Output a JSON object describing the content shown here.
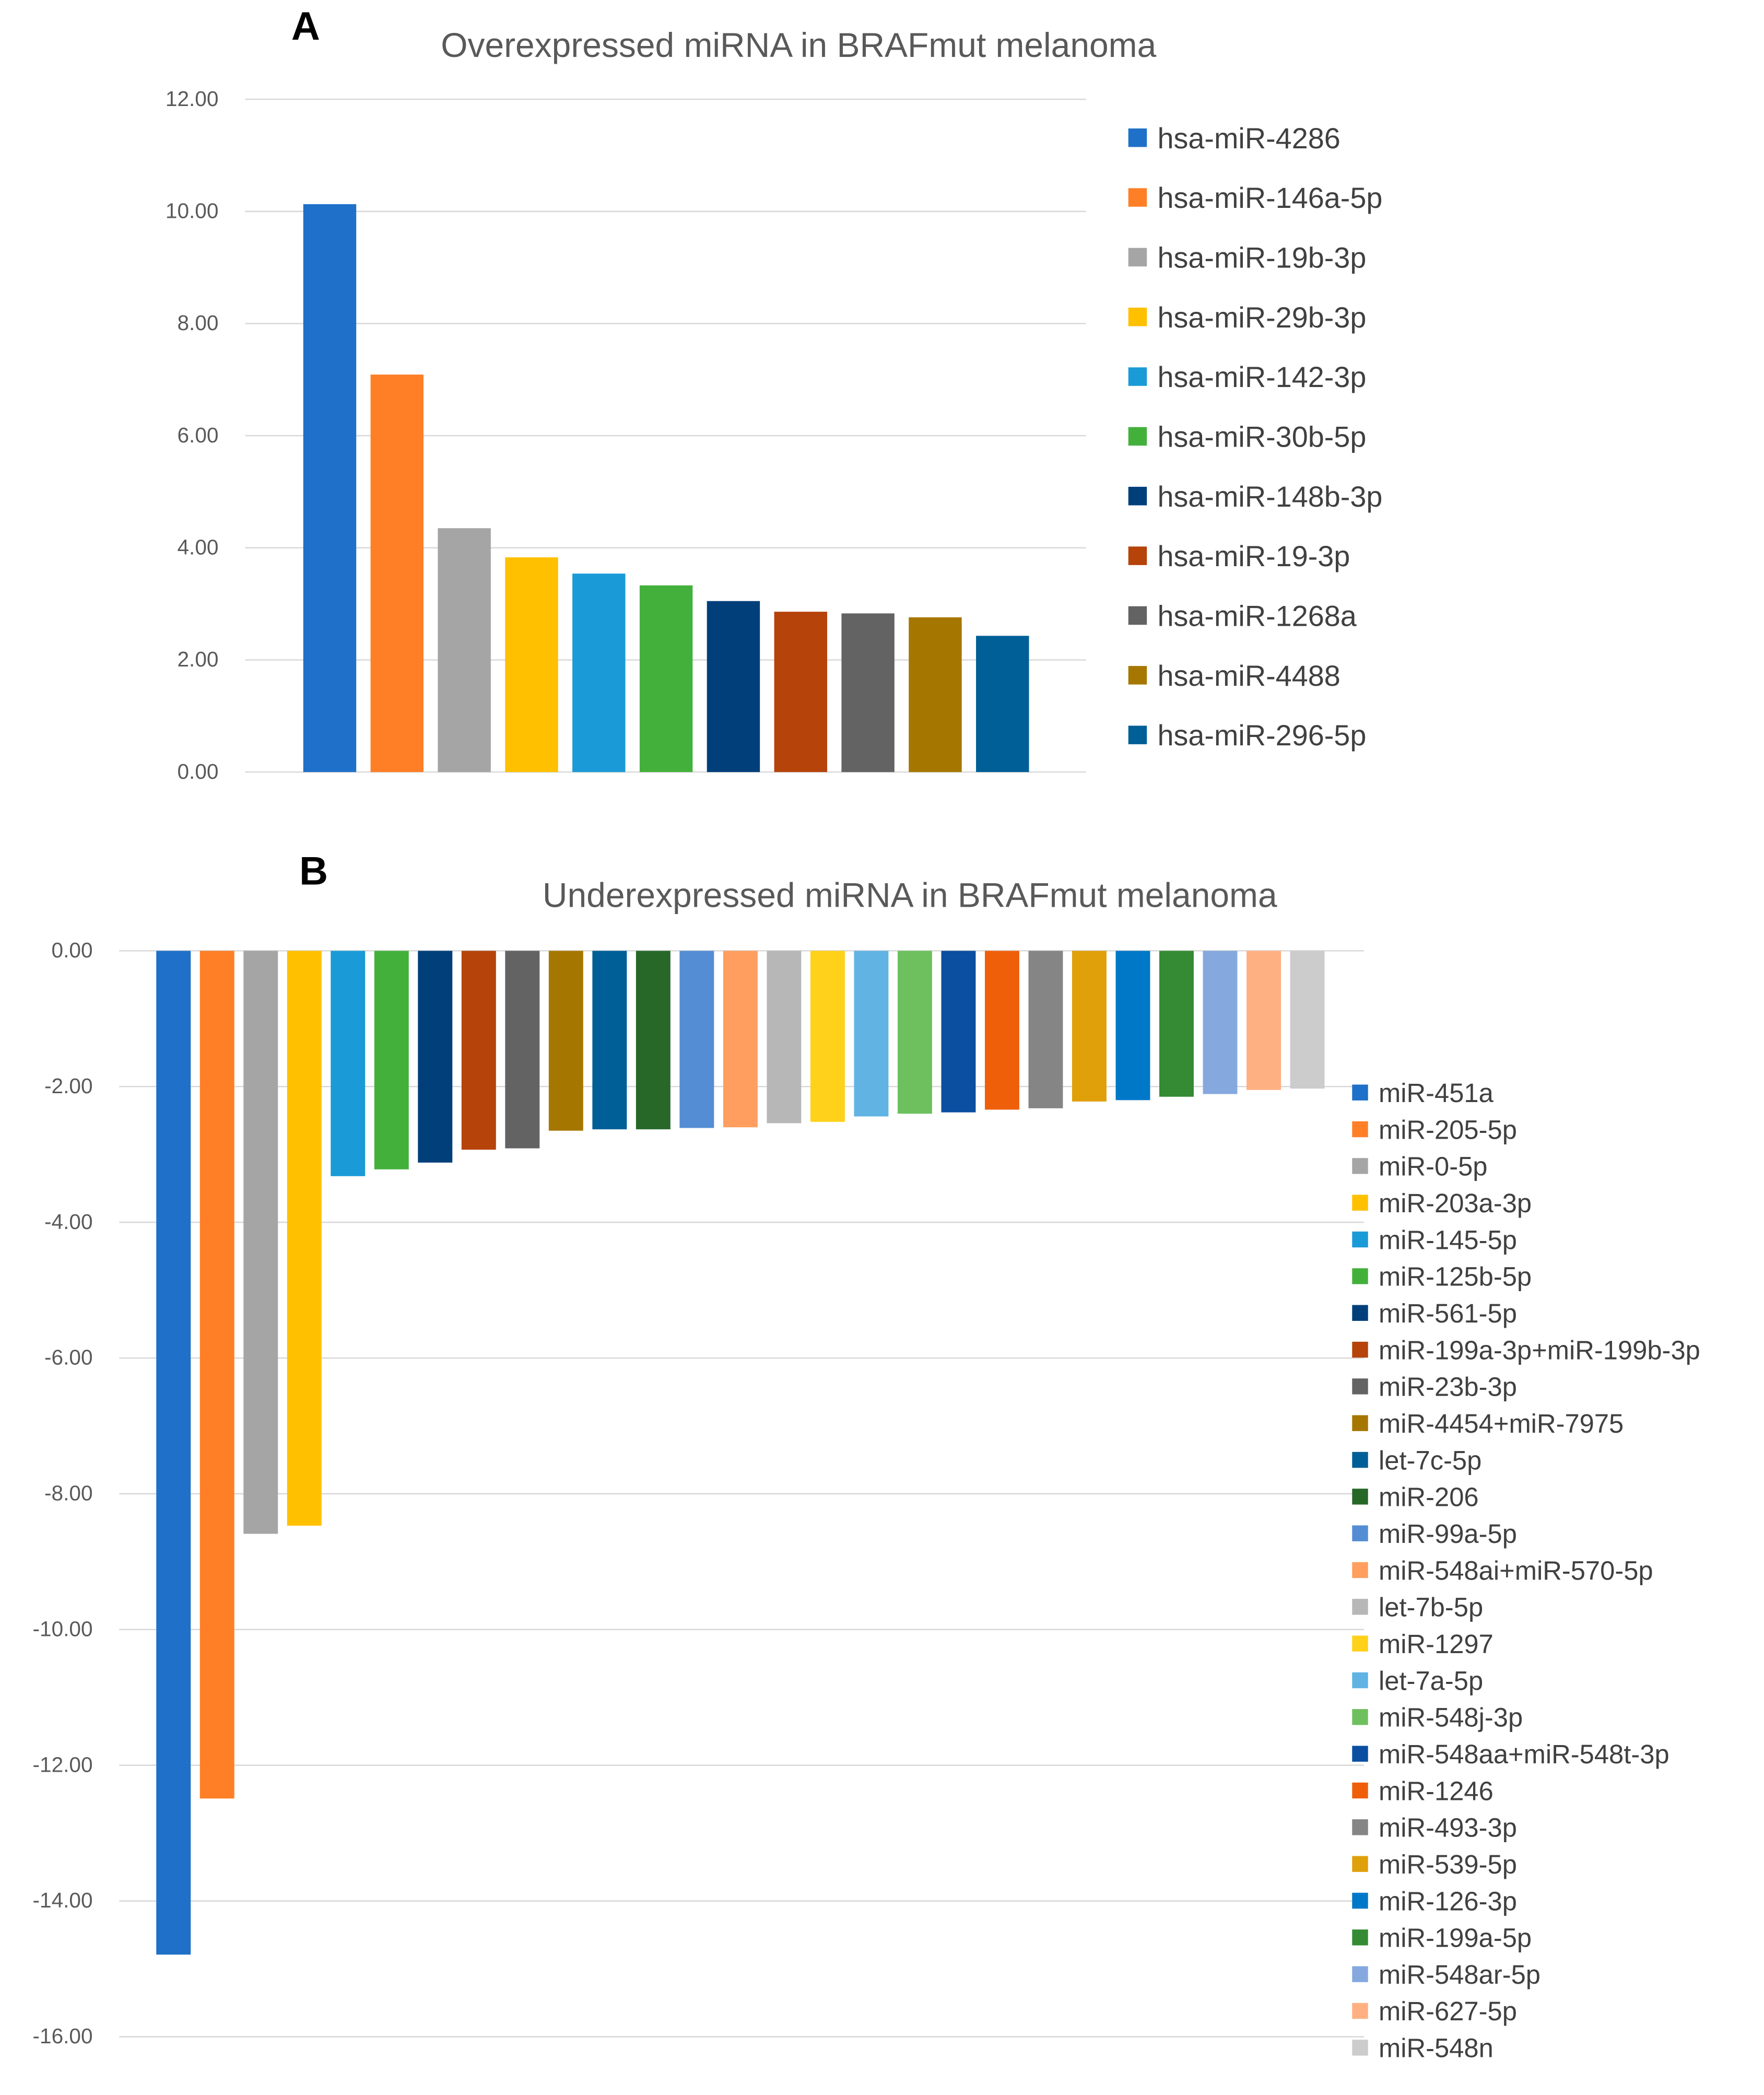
{
  "chart_data": [
    {
      "type": "bar",
      "panel_label": "A",
      "title": "Overexpressed miRNA in BRAFmut melanoma",
      "xlabel": "",
      "ylabel": "",
      "ylim": [
        0,
        12
      ],
      "yticks": [
        "0.00",
        "2.00",
        "4.00",
        "6.00",
        "8.00",
        "10.00",
        "12.00"
      ],
      "grid": true,
      "legend_position": "right",
      "categories": [
        "hsa-miR-4286",
        "hsa-miR-146a-5p",
        "hsa-miR-19b-3p",
        "hsa-miR-29b-3p",
        "hsa-miR-142-3p",
        "hsa-miR-30b-5p",
        "hsa-miR-148b-3p",
        "hsa-miR-19-3p",
        "hsa-miR-1268a",
        "hsa-miR-4488",
        "hsa-miR-296-5p"
      ],
      "values": [
        10.13,
        7.09,
        4.35,
        3.83,
        3.54,
        3.33,
        3.05,
        2.86,
        2.83,
        2.76,
        2.43
      ],
      "colors": [
        "#1F70C8",
        "#FF7F27",
        "#A5A5A5",
        "#FFC000",
        "#1A9BD7",
        "#44B03C",
        "#003F7A",
        "#B5430A",
        "#636363",
        "#A67700",
        "#005F96"
      ]
    },
    {
      "type": "bar",
      "panel_label": "B",
      "title": "Underexpressed miRNA in BRAFmut melanoma",
      "xlabel": "",
      "ylabel": "",
      "ylim": [
        -16,
        0
      ],
      "yticks": [
        "0.00",
        "-2.00",
        "-4.00",
        "-6.00",
        "-8.00",
        "-10.00",
        "-12.00",
        "-14.00",
        "-16.00"
      ],
      "grid": true,
      "legend_position": "right",
      "categories": [
        "miR-451a",
        "miR-205-5p",
        "miR-0-5p",
        "miR-203a-3p",
        "miR-145-5p",
        "miR-125b-5p",
        "miR-561-5p",
        "miR-199a-3p+miR-199b-3p",
        "miR-23b-3p",
        "miR-4454+miR-7975",
        "let-7c-5p",
        "miR-206",
        "miR-99a-5p",
        "miR-548ai+miR-570-5p",
        "let-7b-5p",
        "miR-1297",
        "let-7a-5p",
        "miR-548j-3p",
        "miR-548aa+miR-548t-3p",
        "miR-1246",
        "miR-493-3p",
        "miR-539-5p",
        "miR-126-3p",
        "miR-199a-5p",
        "miR-548ar-5p",
        "miR-627-5p",
        "miR-548n"
      ],
      "values": [
        -14.79,
        -12.49,
        -8.59,
        -8.47,
        -3.32,
        -3.22,
        -3.12,
        -2.93,
        -2.91,
        -2.65,
        -2.63,
        -2.63,
        -2.61,
        -2.6,
        -2.54,
        -2.52,
        -2.44,
        -2.4,
        -2.38,
        -2.34,
        -2.32,
        -2.22,
        -2.2,
        -2.15,
        -2.11,
        -2.05,
        -2.03
      ],
      "colors": [
        "#1F70C8",
        "#FF7F27",
        "#A5A5A5",
        "#FFC000",
        "#1A9BD7",
        "#44B03C",
        "#003F7A",
        "#B5430A",
        "#636363",
        "#A67700",
        "#005F96",
        "#276829",
        "#548DD4",
        "#FF9E5E",
        "#B7B7B7",
        "#FFD11A",
        "#61B3E4",
        "#6DC05D",
        "#0A4FA0",
        "#EF5F0A",
        "#858585",
        "#DFA00A",
        "#0078C8",
        "#348B33",
        "#85A9DF",
        "#FFB082",
        "#CCCCCC"
      ]
    }
  ]
}
